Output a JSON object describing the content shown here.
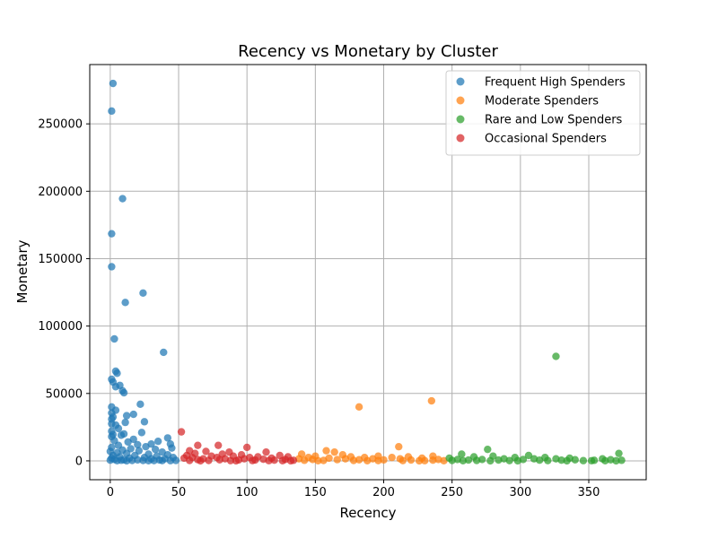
{
  "chart_data": {
    "type": "scatter",
    "title": "Recency vs Monetary by Cluster",
    "xlabel": "Recency",
    "ylabel": "Monetary",
    "xlim": [
      -15,
      392
    ],
    "ylim": [
      -14000,
      294000
    ],
    "xticks": [
      0,
      50,
      100,
      150,
      200,
      250,
      300,
      350
    ],
    "yticks": [
      0,
      50000,
      100000,
      150000,
      200000,
      250000
    ],
    "grid": true,
    "legend_position": "top-right",
    "series": [
      {
        "name": "Frequent High Spenders",
        "color": "#1f77b4",
        "points": [
          [
            2,
            280000
          ],
          [
            1,
            259500
          ],
          [
            9,
            194500
          ],
          [
            1,
            168500
          ],
          [
            1,
            144000
          ],
          [
            24,
            124500
          ],
          [
            11,
            117500
          ],
          [
            3,
            90500
          ],
          [
            39,
            80500
          ],
          [
            4,
            66500
          ],
          [
            5,
            65000
          ],
          [
            1,
            60500
          ],
          [
            2,
            58500
          ],
          [
            4,
            55000
          ],
          [
            7,
            56000
          ],
          [
            9,
            52000
          ],
          [
            10,
            50500
          ],
          [
            22,
            42000
          ],
          [
            1,
            40000
          ],
          [
            4,
            37500
          ],
          [
            1,
            35500
          ],
          [
            12,
            33500
          ],
          [
            17,
            34500
          ],
          [
            2,
            32500
          ],
          [
            1,
            31000
          ],
          [
            25,
            29000
          ],
          [
            11,
            28500
          ],
          [
            1,
            27500
          ],
          [
            4,
            26500
          ],
          [
            6,
            24000
          ],
          [
            1,
            22000
          ],
          [
            23,
            21000
          ],
          [
            2,
            19500
          ],
          [
            8,
            19000
          ],
          [
            10,
            20000
          ],
          [
            1,
            18000
          ],
          [
            42,
            17000
          ],
          [
            17,
            16000
          ],
          [
            30,
            12500
          ],
          [
            35,
            14500
          ],
          [
            3,
            15000
          ],
          [
            13,
            14000
          ],
          [
            20,
            12000
          ],
          [
            44,
            12500
          ],
          [
            6,
            11500
          ],
          [
            26,
            10500
          ],
          [
            1,
            10000
          ],
          [
            15,
            9000
          ],
          [
            33,
            8500
          ],
          [
            45,
            9500
          ],
          [
            9,
            8000
          ],
          [
            0,
            7000
          ],
          [
            21,
            7500
          ],
          [
            38,
            6500
          ],
          [
            5,
            6000
          ],
          [
            12,
            5500
          ],
          [
            28,
            5000
          ],
          [
            42,
            4500
          ],
          [
            2,
            4000
          ],
          [
            18,
            4000
          ],
          [
            34,
            3500
          ],
          [
            7,
            3000
          ],
          [
            25,
            2500
          ],
          [
            46,
            2500
          ],
          [
            1,
            2000
          ],
          [
            14,
            2000
          ],
          [
            30,
            1500
          ],
          [
            40,
            1500
          ],
          [
            3,
            1000
          ],
          [
            10,
            800
          ],
          [
            20,
            700
          ],
          [
            36,
            600
          ],
          [
            0,
            500
          ],
          [
            8,
            400
          ],
          [
            16,
            300
          ],
          [
            24,
            250
          ],
          [
            32,
            200
          ],
          [
            44,
            150
          ],
          [
            5,
            100
          ],
          [
            12,
            50
          ],
          [
            28,
            100
          ],
          [
            38,
            200
          ],
          [
            48,
            300
          ]
        ]
      },
      {
        "name": "Moderate Spenders",
        "color": "#ff7f0e",
        "points": [
          [
            235,
            44500
          ],
          [
            182,
            40000
          ],
          [
            211,
            10500
          ],
          [
            158,
            7500
          ],
          [
            164,
            6500
          ],
          [
            140,
            5000
          ],
          [
            170,
            4500
          ],
          [
            150,
            3500
          ],
          [
            196,
            3500
          ],
          [
            218,
            3000
          ],
          [
            236,
            3500
          ],
          [
            176,
            3000
          ],
          [
            145,
            2500
          ],
          [
            186,
            2500
          ],
          [
            206,
            2500
          ],
          [
            228,
            2000
          ],
          [
            160,
            2000
          ],
          [
            138,
            1500
          ],
          [
            172,
            1500
          ],
          [
            192,
            1500
          ],
          [
            212,
            1500
          ],
          [
            240,
            1000
          ],
          [
            148,
            1000
          ],
          [
            166,
            900
          ],
          [
            182,
            800
          ],
          [
            200,
            700
          ],
          [
            220,
            600
          ],
          [
            236,
            500
          ],
          [
            142,
            400
          ],
          [
            156,
            300
          ],
          [
            178,
            300
          ],
          [
            196,
            200
          ],
          [
            214,
            200
          ],
          [
            230,
            150
          ],
          [
            244,
            100
          ],
          [
            152,
            100
          ],
          [
            188,
            100
          ],
          [
            226,
            50
          ]
        ]
      },
      {
        "name": "Rare and Low Spenders",
        "color": "#2ca02c",
        "points": [
          [
            326,
            77500
          ],
          [
            276,
            8500
          ],
          [
            257,
            5000
          ],
          [
            372,
            5500
          ],
          [
            306,
            4000
          ],
          [
            280,
            3500
          ],
          [
            266,
            3000
          ],
          [
            318,
            2500
          ],
          [
            296,
            2500
          ],
          [
            336,
            2000
          ],
          [
            248,
            2000
          ],
          [
            288,
            1500
          ],
          [
            310,
            1500
          ],
          [
            326,
            1500
          ],
          [
            360,
            1500
          ],
          [
            254,
            1000
          ],
          [
            272,
            1000
          ],
          [
            302,
            1000
          ],
          [
            340,
            800
          ],
          [
            366,
            800
          ],
          [
            262,
            600
          ],
          [
            284,
            600
          ],
          [
            314,
            500
          ],
          [
            330,
            500
          ],
          [
            354,
            400
          ],
          [
            374,
            400
          ],
          [
            250,
            300
          ],
          [
            268,
            300
          ],
          [
            292,
            200
          ],
          [
            320,
            200
          ],
          [
            346,
            150
          ],
          [
            362,
            100
          ],
          [
            258,
            100
          ],
          [
            278,
            50
          ],
          [
            298,
            50
          ],
          [
            334,
            50
          ],
          [
            370,
            50
          ],
          [
            352,
            100
          ]
        ]
      },
      {
        "name": "Occasional Spenders",
        "color": "#d62728",
        "points": [
          [
            52,
            21500
          ],
          [
            64,
            11500
          ],
          [
            79,
            11500
          ],
          [
            100,
            10000
          ],
          [
            58,
            7500
          ],
          [
            70,
            7000
          ],
          [
            87,
            6500
          ],
          [
            114,
            6500
          ],
          [
            62,
            5500
          ],
          [
            82,
            5000
          ],
          [
            96,
            4500
          ],
          [
            124,
            4000
          ],
          [
            56,
            4000
          ],
          [
            74,
            3500
          ],
          [
            90,
            3500
          ],
          [
            108,
            3000
          ],
          [
            130,
            3000
          ],
          [
            60,
            2500
          ],
          [
            78,
            2500
          ],
          [
            102,
            2500
          ],
          [
            118,
            2000
          ],
          [
            54,
            2000
          ],
          [
            68,
            1500
          ],
          [
            84,
            1500
          ],
          [
            98,
            1500
          ],
          [
            112,
            1200
          ],
          [
            128,
            1000
          ],
          [
            64,
            900
          ],
          [
            80,
            800
          ],
          [
            94,
            700
          ],
          [
            106,
            600
          ],
          [
            120,
            500
          ],
          [
            134,
            400
          ],
          [
            58,
            300
          ],
          [
            72,
            300
          ],
          [
            88,
            200
          ],
          [
            104,
            200
          ],
          [
            116,
            150
          ],
          [
            126,
            100
          ],
          [
            66,
            50
          ],
          [
            92,
            50
          ],
          [
            132,
            50
          ]
        ]
      }
    ]
  }
}
